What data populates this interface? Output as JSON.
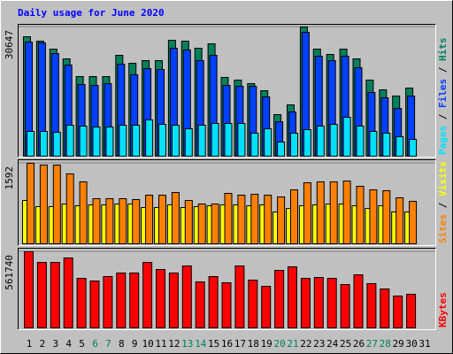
{
  "chart_data": [
    {
      "type": "bar",
      "title": "Daily usage for June 2020",
      "legend_separator": " / ",
      "ylim": [
        0,
        30647
      ],
      "yticks": [
        30647
      ],
      "series": [
        {
          "name": "Hits",
          "color": "#00805c",
          "values": [
            28337,
            27287,
            25398,
            23089,
            18891,
            18891,
            18891,
            23929,
            22040,
            22669,
            22669,
            27497,
            27287,
            25608,
            26657,
            18681,
            18051,
            17212,
            15533,
            9865,
            12174,
            30647,
            25398,
            24139,
            25398,
            23089,
            18051,
            15743,
            14273,
            16162,
            null
          ]
        },
        {
          "name": "Files",
          "color": "#0040ff",
          "values": [
            27077,
            26867,
            24348,
            21620,
            17002,
            16792,
            17212,
            21830,
            19311,
            20780,
            20570,
            25608,
            25188,
            22669,
            23929,
            16792,
            16582,
            16582,
            14063,
            8186,
            10495,
            29386,
            23719,
            22669,
            23719,
            20990,
            15113,
            13853,
            11335,
            14273,
            null
          ]
        },
        {
          "name": "Pages",
          "color": "#00e0ff",
          "values": [
            5877,
            5877,
            5667,
            7347,
            7137,
            6927,
            6927,
            7347,
            7347,
            8606,
            7556,
            7347,
            6507,
            7347,
            7766,
            7766,
            7766,
            5457,
            6507,
            3358,
            5457,
            6297,
            7137,
            7556,
            9236,
            7137,
            5877,
            5457,
            4618,
            3988,
            null
          ]
        }
      ]
    },
    {
      "type": "bar",
      "legend_separator": " / ",
      "ylim": [
        0,
        1592
      ],
      "yticks": [
        1592
      ],
      "series": [
        {
          "name": "Visits",
          "color": "#ffff00",
          "values": [
            857,
            735,
            735,
            787,
            752,
            770,
            770,
            787,
            787,
            717,
            717,
            770,
            717,
            735,
            752,
            770,
            770,
            752,
            770,
            630,
            700,
            752,
            770,
            787,
            787,
            752,
            700,
            752,
            630,
            630,
            null
          ]
        },
        {
          "name": "Sites",
          "color": "#ff8000",
          "values": [
            1592,
            1557,
            1557,
            1382,
            1225,
            892,
            892,
            892,
            875,
            962,
            962,
            1015,
            857,
            787,
            787,
            997,
            962,
            980,
            962,
            927,
            1067,
            1207,
            1225,
            1225,
            1242,
            1137,
            1067,
            1050,
            910,
            840,
            null
          ]
        }
      ]
    },
    {
      "type": "bar",
      "ylim": [
        0,
        561740
      ],
      "yticks": [
        561740
      ],
      "categories": [
        "1",
        "2",
        "3",
        "4",
        "5",
        "6",
        "7",
        "8",
        "9",
        "10",
        "11",
        "12",
        "13",
        "14",
        "15",
        "16",
        "17",
        "18",
        "19",
        "20",
        "21",
        "22",
        "23",
        "24",
        "25",
        "26",
        "27",
        "28",
        "29",
        "30",
        "31"
      ],
      "category_colors": [
        "#000000",
        "#000000",
        "#000000",
        "#000000",
        "#000000",
        "#00805c",
        "#00805c",
        "#000000",
        "#000000",
        "#000000",
        "#000000",
        "#000000",
        "#00805c",
        "#00805c",
        "#000000",
        "#000000",
        "#000000",
        "#000000",
        "#000000",
        "#00805c",
        "#00805c",
        "#000000",
        "#000000",
        "#000000",
        "#000000",
        "#000000",
        "#00805c",
        "#00805c",
        "#000000",
        "#000000",
        "#000000"
      ],
      "series": [
        {
          "name": "KBytes",
          "color": "#ff0000",
          "values": [
            561740,
            483368,
            483368,
            516028,
            365792,
            346196,
            378856,
            404984,
            404984,
            483368,
            431112,
            404984,
            457240,
            339664,
            378856,
            333132,
            457240,
            352728,
            307004,
            424580,
            450708,
            365792,
            372324,
            365792,
            320068,
            391920,
            326600,
            287408,
            235152,
            248216,
            null
          ]
        }
      ]
    }
  ]
}
